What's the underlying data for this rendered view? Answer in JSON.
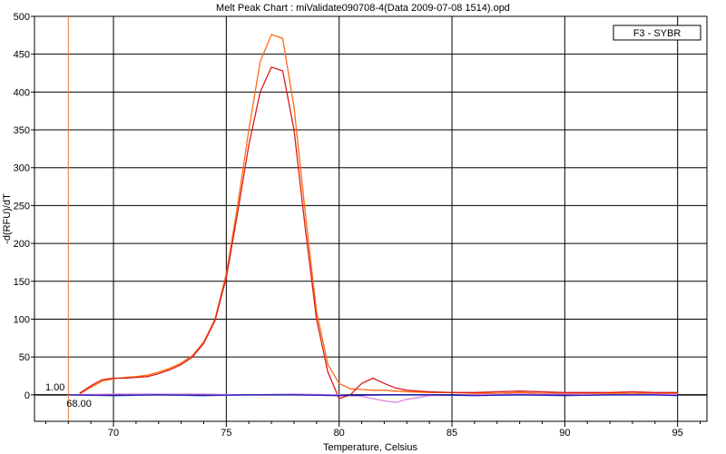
{
  "chart_data": {
    "type": "line",
    "title": "Melt Peak Chart : miValidate090708-4(Data 2009-07-08 1514).opd",
    "xlabel": "Temperature, Celsius",
    "ylabel": "-d(RFU)/dT",
    "xlim": [
      66.5,
      96.3
    ],
    "ylim": [
      -35,
      500
    ],
    "x_ticks": [
      70,
      75,
      80,
      85,
      90,
      95
    ],
    "y_ticks": [
      0,
      50,
      100,
      150,
      200,
      250,
      300,
      350,
      400,
      450,
      500
    ],
    "grid": true,
    "legend": {
      "label": "F3 - SYBR",
      "position": "top-right"
    },
    "threshold": {
      "value": "1.00"
    },
    "cursor": {
      "x": 68.0,
      "label": "68.00",
      "color": "#e8772e"
    },
    "series": [
      {
        "color": "#ff6a10",
        "x": [
          68.5,
          69.0,
          69.5,
          70.0,
          70.5,
          71.0,
          71.5,
          72.0,
          72.5,
          73.0,
          73.5,
          74.0,
          74.5,
          75.0,
          75.5,
          76.0,
          76.5,
          77.0,
          77.5,
          78.0,
          78.5,
          79.0,
          79.5,
          80.0,
          80.5,
          81.0,
          81.5,
          82.0,
          82.5,
          83.0,
          84.0,
          85.0,
          86.0,
          87.0,
          88.0,
          89.0,
          90.0,
          91.0,
          92.0,
          93.0,
          94.0,
          95.0
        ],
        "y": [
          1,
          10,
          18,
          21,
          23,
          24,
          26,
          30,
          35,
          42,
          52,
          70,
          100,
          160,
          250,
          350,
          440,
          476,
          471,
          380,
          240,
          110,
          40,
          15,
          8,
          7,
          6,
          6,
          5,
          4,
          3,
          3,
          2,
          2,
          3,
          2,
          2,
          2,
          2,
          2,
          2,
          2
        ]
      },
      {
        "color": "#dd1a1a",
        "x": [
          68.5,
          69.0,
          69.5,
          70.0,
          70.5,
          71.0,
          71.5,
          72.0,
          72.5,
          73.0,
          73.5,
          74.0,
          74.5,
          75.0,
          75.5,
          76.0,
          76.5,
          77.0,
          77.5,
          78.0,
          78.5,
          79.0,
          79.5,
          80.0,
          80.5,
          81.0,
          81.5,
          82.0,
          82.5,
          83.0,
          84.0,
          85.0,
          86.0,
          87.0,
          88.0,
          89.0,
          90.0,
          91.0,
          92.0,
          93.0,
          94.0,
          95.0
        ],
        "y": [
          2,
          12,
          20,
          22,
          22,
          23,
          24,
          28,
          33,
          40,
          50,
          68,
          98,
          155,
          240,
          330,
          400,
          433,
          428,
          350,
          220,
          100,
          30,
          -5,
          0,
          15,
          22,
          15,
          9,
          6,
          4,
          3,
          3,
          4,
          5,
          4,
          3,
          3,
          3,
          4,
          3,
          3
        ]
      },
      {
        "color": "#e080e0",
        "x": [
          68.0,
          70.0,
          72.0,
          74.0,
          76.0,
          78.0,
          80.0,
          81.0,
          82.0,
          82.5,
          83.0,
          84.0,
          86.0,
          88.0,
          90.0,
          92.0,
          94.0,
          95.0
        ],
        "y": [
          0,
          1,
          1,
          1,
          0,
          1,
          0,
          -2,
          -8,
          -10,
          -6,
          -1,
          0,
          1,
          1,
          0,
          1,
          0
        ]
      },
      {
        "color": "#2020c0",
        "x": [
          68.0,
          70.0,
          72.0,
          74.0,
          76.0,
          78.0,
          80.0,
          82.0,
          84.0,
          86.0,
          88.0,
          90.0,
          92.0,
          94.0,
          95.0
        ],
        "y": [
          0,
          -1,
          0,
          -1,
          0,
          0,
          -1,
          0,
          0,
          -1,
          0,
          -1,
          0,
          0,
          -1
        ]
      }
    ]
  }
}
